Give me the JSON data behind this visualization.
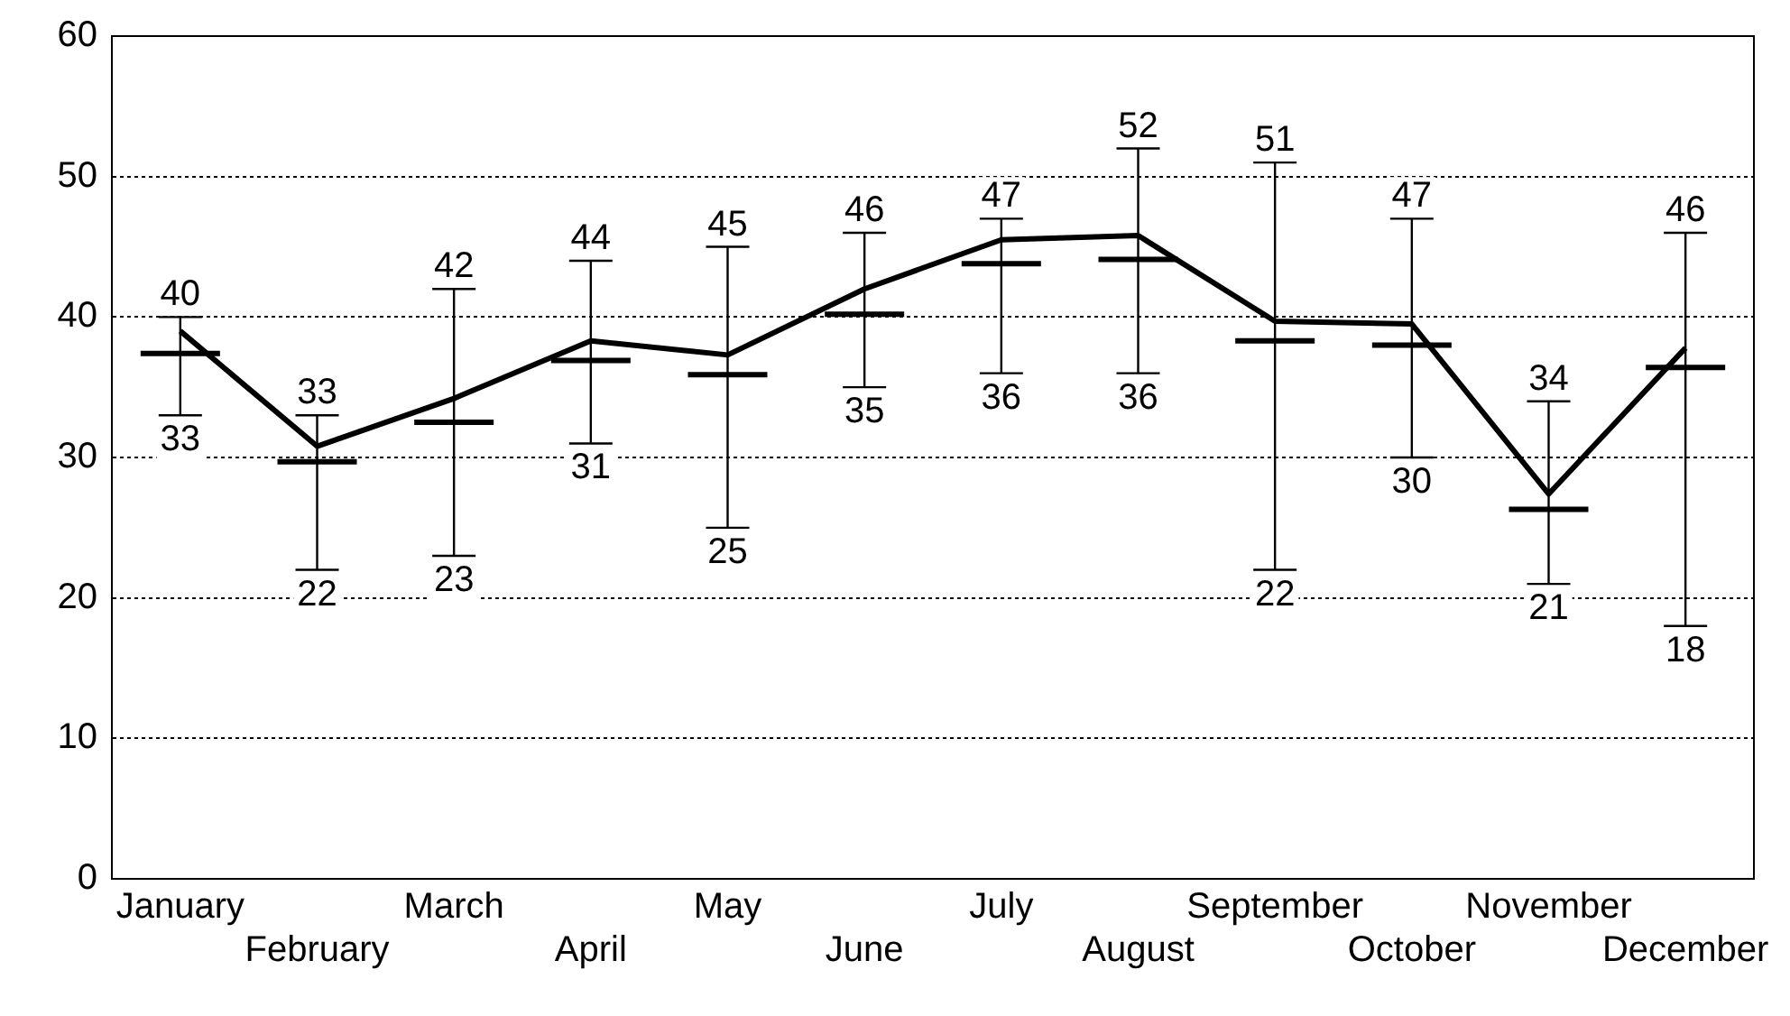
{
  "chart_data": {
    "type": "candlestick",
    "categories": [
      "January",
      "February",
      "March",
      "April",
      "May",
      "June",
      "July",
      "August",
      "September",
      "October",
      "November",
      "December"
    ],
    "ohlc": [
      [
        37.4,
        40,
        33,
        37.4
      ],
      [
        29.7,
        33,
        22,
        29.7
      ],
      [
        32.5,
        42,
        23,
        32.5
      ],
      [
        36.9,
        44,
        31,
        36.9
      ],
      [
        35.9,
        45,
        25,
        35.9
      ],
      [
        40.2,
        46,
        35,
        40.2
      ],
      [
        43.8,
        47,
        36,
        43.8
      ],
      [
        44.1,
        52,
        36,
        44.1
      ],
      [
        38.3,
        51,
        22,
        38.3
      ],
      [
        38,
        47,
        30,
        38
      ],
      [
        26.3,
        34,
        21,
        26.3
      ],
      [
        36.4,
        46,
        18,
        36.4
      ]
    ],
    "series": [
      {
        "type": "line",
        "color": "#000000",
        "values": [
          39,
          30.8,
          34.2,
          38.3,
          37.3,
          42,
          45.5,
          45.8,
          39.7,
          39.5,
          27.4,
          37.8
        ]
      }
    ],
    "ylim": [
      0,
      60
    ],
    "yticks": [
      0,
      10,
      20,
      30,
      40,
      50,
      60
    ],
    "grid": "y",
    "marker": "none",
    "annotations": [
      {
        "text": "40",
        "x": "January",
        "y": 40
      },
      {
        "text": "33",
        "x": "January",
        "y": 33
      },
      {
        "text": "33",
        "x": "February",
        "y": 33
      },
      {
        "text": "22",
        "x": "February",
        "y": 22
      },
      {
        "text": "42",
        "x": "March",
        "y": 42
      },
      {
        "text": "23",
        "x": "March",
        "y": 23
      },
      {
        "text": "44",
        "x": "April",
        "y": 44
      },
      {
        "text": "31",
        "x": "April",
        "y": 31
      },
      {
        "text": "45",
        "x": "May",
        "y": 45
      },
      {
        "text": "25",
        "x": "May",
        "y": 25
      },
      {
        "text": "46",
        "x": "June",
        "y": 46
      },
      {
        "text": "35",
        "x": "June",
        "y": 35
      },
      {
        "text": "47",
        "x": "July",
        "y": 47
      },
      {
        "text": "36",
        "x": "July",
        "y": 36
      },
      {
        "text": "52",
        "x": "August",
        "y": 52
      },
      {
        "text": "36",
        "x": "August",
        "y": 36
      },
      {
        "text": "51",
        "x": "September",
        "y": 51
      },
      {
        "text": "22",
        "x": "September",
        "y": 22
      },
      {
        "text": "47",
        "x": "October",
        "y": 47
      },
      {
        "text": "30",
        "x": "October",
        "y": 30
      },
      {
        "text": "34",
        "x": "November",
        "y": 34
      },
      {
        "text": "21",
        "x": "November",
        "y": 21
      },
      {
        "text": "46",
        "x": "December",
        "y": 46
      },
      {
        "text": "18",
        "x": "December",
        "y": 18
      }
    ]
  }
}
